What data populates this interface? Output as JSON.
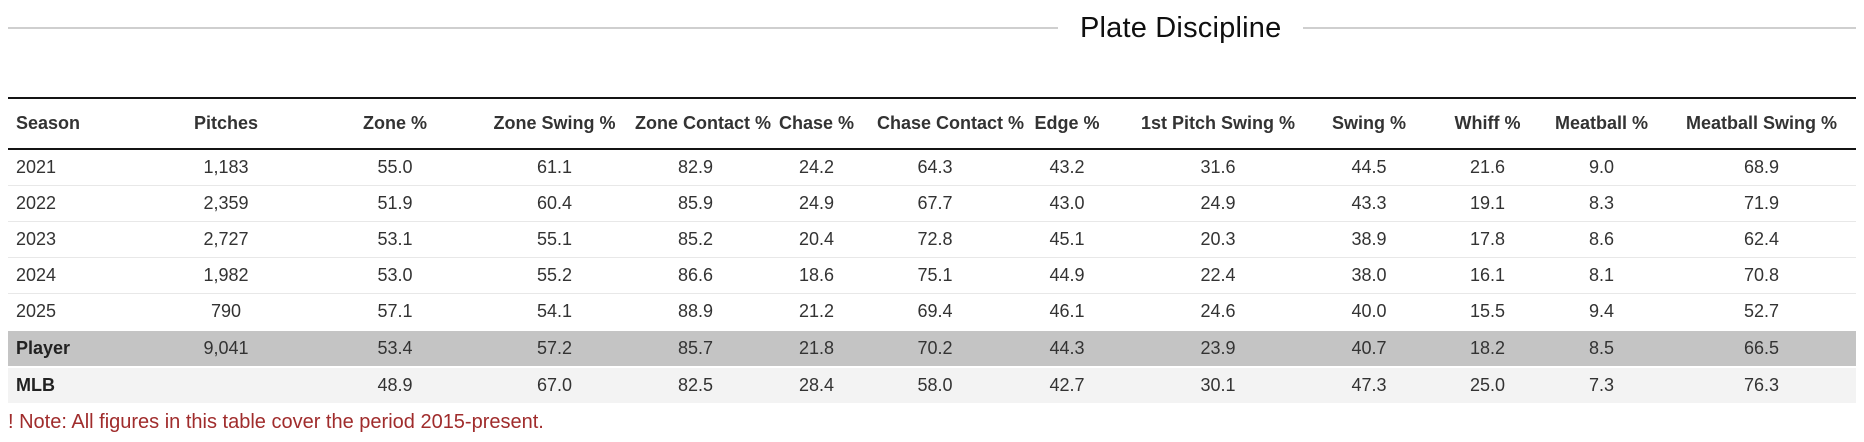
{
  "section": {
    "title": "Plate Discipline",
    "note": "! Note: All figures in this table cover the period 2015-present."
  },
  "chart_data": {
    "type": "table",
    "title": "Plate Discipline",
    "columns": [
      "Season",
      "Pitches",
      "Zone %",
      "Zone Swing %",
      "Zone Contact %",
      "Chase %",
      "Chase Contact %",
      "Edge %",
      "1st Pitch Swing %",
      "Swing %",
      "Whiff %",
      "Meatball %",
      "Meatball Swing %"
    ],
    "rows": [
      {
        "label": "2021",
        "type": "season",
        "values": [
          "1,183",
          "55.0",
          "61.1",
          "82.9",
          "24.2",
          "64.3",
          "43.2",
          "31.6",
          "44.5",
          "21.6",
          "9.0",
          "68.9"
        ]
      },
      {
        "label": "2022",
        "type": "season",
        "values": [
          "2,359",
          "51.9",
          "60.4",
          "85.9",
          "24.9",
          "67.7",
          "43.0",
          "24.9",
          "43.3",
          "19.1",
          "8.3",
          "71.9"
        ]
      },
      {
        "label": "2023",
        "type": "season",
        "values": [
          "2,727",
          "53.1",
          "55.1",
          "85.2",
          "20.4",
          "72.8",
          "45.1",
          "20.3",
          "38.9",
          "17.8",
          "8.6",
          "62.4"
        ]
      },
      {
        "label": "2024",
        "type": "season",
        "values": [
          "1,982",
          "53.0",
          "55.2",
          "86.6",
          "18.6",
          "75.1",
          "44.9",
          "22.4",
          "38.0",
          "16.1",
          "8.1",
          "70.8"
        ]
      },
      {
        "label": "2025",
        "type": "season",
        "values": [
          "790",
          "57.1",
          "54.1",
          "88.9",
          "21.2",
          "69.4",
          "46.1",
          "24.6",
          "40.0",
          "15.5",
          "9.4",
          "52.7"
        ]
      },
      {
        "label": "Player",
        "type": "player",
        "values": [
          "9,041",
          "53.4",
          "57.2",
          "85.7",
          "21.8",
          "70.2",
          "44.3",
          "23.9",
          "40.7",
          "18.2",
          "8.5",
          "66.5"
        ]
      },
      {
        "label": "MLB",
        "type": "mlb",
        "values": [
          "",
          "48.9",
          "67.0",
          "82.5",
          "28.4",
          "58.0",
          "42.7",
          "30.1",
          "47.3",
          "25.0",
          "7.3",
          "76.3"
        ]
      }
    ]
  },
  "colors": {
    "note_text": "#a02c2c",
    "player_row_bg": "#c4c4c4",
    "mlb_row_bg": "#f3f3f3",
    "header_border": "#141414",
    "divider_line": "#cfcfcf"
  }
}
